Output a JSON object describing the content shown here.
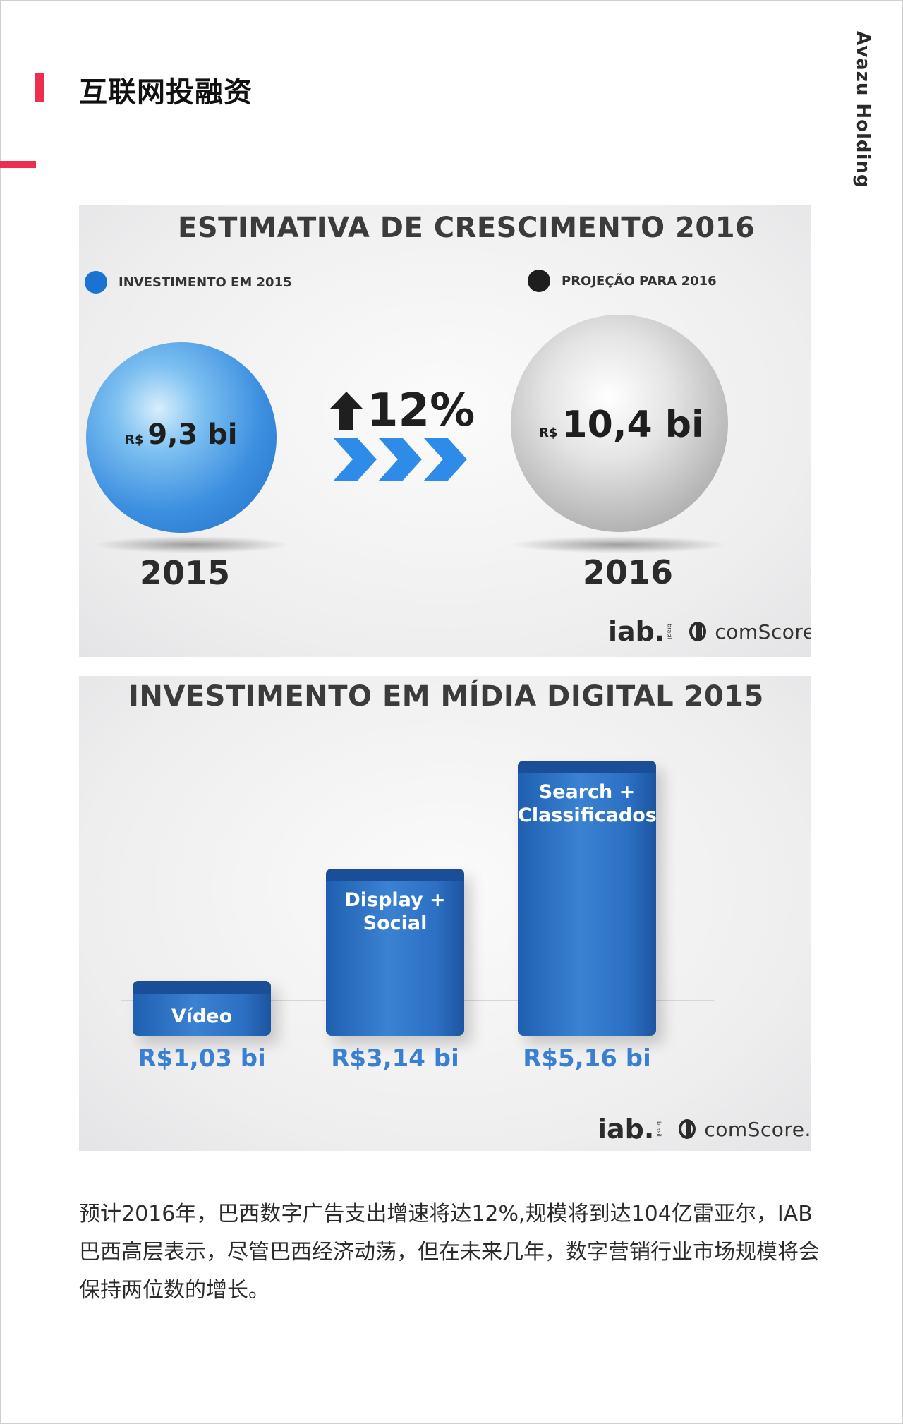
{
  "header": {
    "section_title": "互联网投融资",
    "brand": "Avazu Holding",
    "accent_color": "#ee2e4f"
  },
  "panel1": {
    "title": "ESTIMATIVA DE CRESCIMENTO 2016",
    "legend": [
      {
        "label": "INVESTIMENTO EM 2015",
        "color": "#1a73d1"
      },
      {
        "label": "PROJEÇÃO PARA 2016",
        "color": "#1e1e1e"
      }
    ],
    "ball_2015": {
      "currency": "R$",
      "value": "9,3 bi",
      "year": "2015"
    },
    "ball_2016": {
      "currency": "R$",
      "value": "10,4 bi",
      "year": "2016"
    },
    "growth": "12%",
    "logos": {
      "iab": "iab.",
      "iab_sub": "brasil",
      "comscore": "comScore."
    }
  },
  "chart_data": {
    "type": "bar",
    "title": "INVESTIMENTO EM MÍDIA DIGITAL 2015",
    "categories": [
      "Vídeo",
      "Display + Social",
      "Search + Classificados"
    ],
    "values": [
      1.03,
      3.14,
      5.16
    ],
    "value_labels": [
      "R$1,03 bi",
      "R$3,14 bi",
      "R$5,16 bi"
    ],
    "category_lines": [
      [
        "Vídeo"
      ],
      [
        "Display +",
        "Social"
      ],
      [
        "Search +",
        "Classificados"
      ]
    ],
    "bar_color": "#2f74c8",
    "value_color": "#3a7fd2",
    "logos": {
      "iab": "iab.",
      "iab_sub": "brasil",
      "comscore": "comScore."
    }
  },
  "body": {
    "paragraph": "预计2016年，巴西数字广告支出增速将达12%,规模将到达104亿雷亚尔，IAB巴西高层表示，尽管巴西经济动荡，但在未来几年，数字营销行业市场规模将会保持两位数的增长。"
  }
}
